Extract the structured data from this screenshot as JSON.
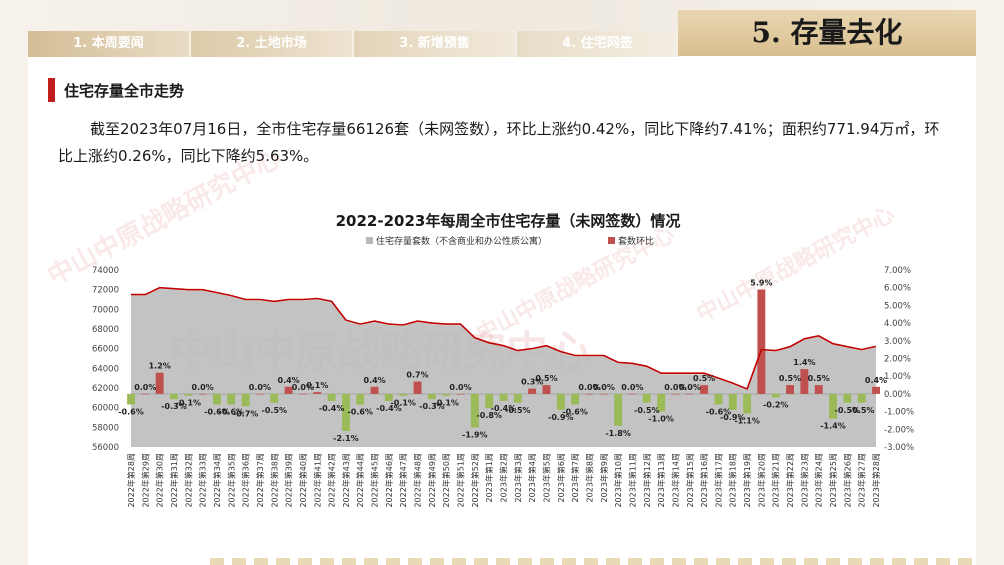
{
  "header": {
    "tabs": [
      "1. 本周要闻",
      "2. 土地市场",
      "3. 新增预售",
      "4. 住宅网签"
    ],
    "active_tab": "5. 存量去化"
  },
  "section": {
    "title": "住宅存量全市走势"
  },
  "summary": "截至2023年07月16日，全市住宅存量66126套（未网签数），环比上涨约0.42%，同比下降约7.41%；面积约771.94万㎡，环比上涨约0.26%，同比下降约5.63%。",
  "watermark": "中山中原战略研究中心",
  "colors": {
    "area": "#b9b9b9",
    "bar": "#c0504d",
    "bar_negative": "#9bbb59",
    "line": "#c00000",
    "accent": "#c21c1c"
  },
  "chart_data": {
    "type": "bar",
    "title": "2022-2023年每周全市住宅存量（未网签数）情况",
    "legend": [
      "住宅存量套数（不含商业和办公性质公寓）",
      "套数环比"
    ],
    "legend_placement": "top",
    "ylim_left": [
      56000,
      74000
    ],
    "ylim_right": [
      -3,
      7
    ],
    "yticks_left": [
      "56000",
      "58000",
      "60000",
      "62000",
      "64000",
      "66000",
      "68000",
      "70000",
      "72000",
      "74000"
    ],
    "yticks_right": [
      "-3.00%",
      "-2.00%",
      "-1.00%",
      "0.00%",
      "1.00%",
      "2.00%",
      "3.00%",
      "4.00%",
      "5.00%",
      "6.00%",
      "7.00%"
    ],
    "categories": [
      "2022年第28周",
      "2022年第29周",
      "2022年第30周",
      "2022年第31周",
      "2022年第32周",
      "2022年第33周",
      "2022年第34周",
      "2022年第35周",
      "2022年第36周",
      "2022年第37周",
      "2022年第38周",
      "2022年第39周",
      "2022年第40周",
      "2022年第41周",
      "2022年第42周",
      "2022年第43周",
      "2022年第44周",
      "2022年第45周",
      "2022年第46周",
      "2022年第47周",
      "2022年第48周",
      "2022年第49周",
      "2022年第50周",
      "2022年第51周",
      "2022年第52周",
      "2023年第1周",
      "2023年第2周",
      "2023年第3周",
      "2023年第4周",
      "2023年第5周",
      "2023年第6周",
      "2023年第7周",
      "2023年第8周",
      "2023年第9周",
      "2023年第10周",
      "2023年第11周",
      "2023年第12周",
      "2023年第13周",
      "2023年第14周",
      "2023年第15周",
      "2023年第16周",
      "2023年第17周",
      "2023年第18周",
      "2023年第19周",
      "2023年第20周",
      "2023年第21周",
      "2023年第22周",
      "2023年第23周",
      "2023年第24周",
      "2023年第25周",
      "2023年第26周",
      "2023年第27周",
      "2023年第28周"
    ],
    "series": [
      {
        "name": "住宅存量套数（不含商业和办公性质公寓）",
        "type": "area",
        "values": [
          71400,
          71400,
          72100,
          72000,
          71900,
          71900,
          71600,
          71300,
          70900,
          70900,
          70700,
          70900,
          70900,
          71000,
          70700,
          68800,
          68400,
          68700,
          68400,
          68300,
          68700,
          68500,
          68400,
          68400,
          67000,
          66500,
          66200,
          65700,
          65900,
          66200,
          65600,
          65200,
          65200,
          65200,
          64500,
          64400,
          64100,
          63400,
          63400,
          63400,
          63400,
          62900,
          62400,
          61800,
          65800,
          65700,
          66100,
          66900,
          67200,
          66400,
          66100,
          65800,
          66126
        ]
      },
      {
        "name": "套数环比",
        "type": "bar",
        "values": [
          -0.6,
          0.0,
          1.2,
          -0.3,
          -0.1,
          0.0,
          -0.6,
          -0.6,
          -0.7,
          0.0,
          -0.5,
          0.4,
          0.0,
          0.1,
          -0.4,
          -2.1,
          -0.6,
          0.4,
          -0.4,
          -0.1,
          0.7,
          -0.3,
          -0.1,
          0.0,
          -1.9,
          -0.8,
          -0.4,
          -0.5,
          0.3,
          0.5,
          -0.9,
          -0.6,
          0.0,
          0.0,
          -1.8,
          0.0,
          -0.5,
          -1.0,
          0.0,
          0.0,
          0.5,
          -0.6,
          -0.9,
          -1.1,
          5.9,
          -0.2,
          0.5,
          1.4,
          0.5,
          -1.4,
          -0.5,
          -0.5,
          0.4
        ]
      }
    ],
    "line_series": {
      "name": "",
      "values": [
        71400,
        71400,
        72100,
        72000,
        71900,
        71900,
        71600,
        71300,
        70900,
        70900,
        70700,
        70900,
        70900,
        71000,
        70700,
        68800,
        68400,
        68700,
        68400,
        68300,
        68700,
        68500,
        68400,
        68400,
        67000,
        66500,
        66200,
        65700,
        65900,
        66200,
        65600,
        65200,
        65200,
        65200,
        64500,
        64400,
        64100,
        63400,
        63400,
        63400,
        63400,
        62900,
        62400,
        61800,
        65800,
        65700,
        66100,
        66900,
        67200,
        66400,
        66100,
        65800,
        66126
      ]
    },
    "bar_labels": [
      "-0.6%",
      "0.0%",
      "1.2%",
      "-0.3%",
      "-0.1%",
      "0.0%",
      "-0.6%",
      "-0.6%",
      "-0.7%",
      "0.0%",
      "-0.5%",
      "0.4%",
      "0.0%",
      "0.1%",
      "-0.4%",
      "-2.1%",
      "-0.6%",
      "0.4%",
      "-0.4%",
      "-0.1%",
      "0.7%",
      "-0.3%",
      "-0.1%",
      "0.0%",
      "-1.9%",
      "-0.8%",
      "-0.4%",
      "-0.5%",
      "0.3%",
      "0.5%",
      "-0.9%",
      "-0.6%",
      "0.0%",
      "0.0%",
      "-1.8%",
      "0.0%",
      "-0.5%",
      "-1.0%",
      "0.0%",
      "0.0%",
      "0.5%",
      "-0.6%",
      "-0.9%",
      "-1.1%",
      "5.9%",
      "-0.2%",
      "0.5%",
      "1.4%",
      "0.5%",
      "-1.4%",
      "-0.5%",
      "-0.5%",
      "0.4%"
    ],
    "grid": false
  }
}
